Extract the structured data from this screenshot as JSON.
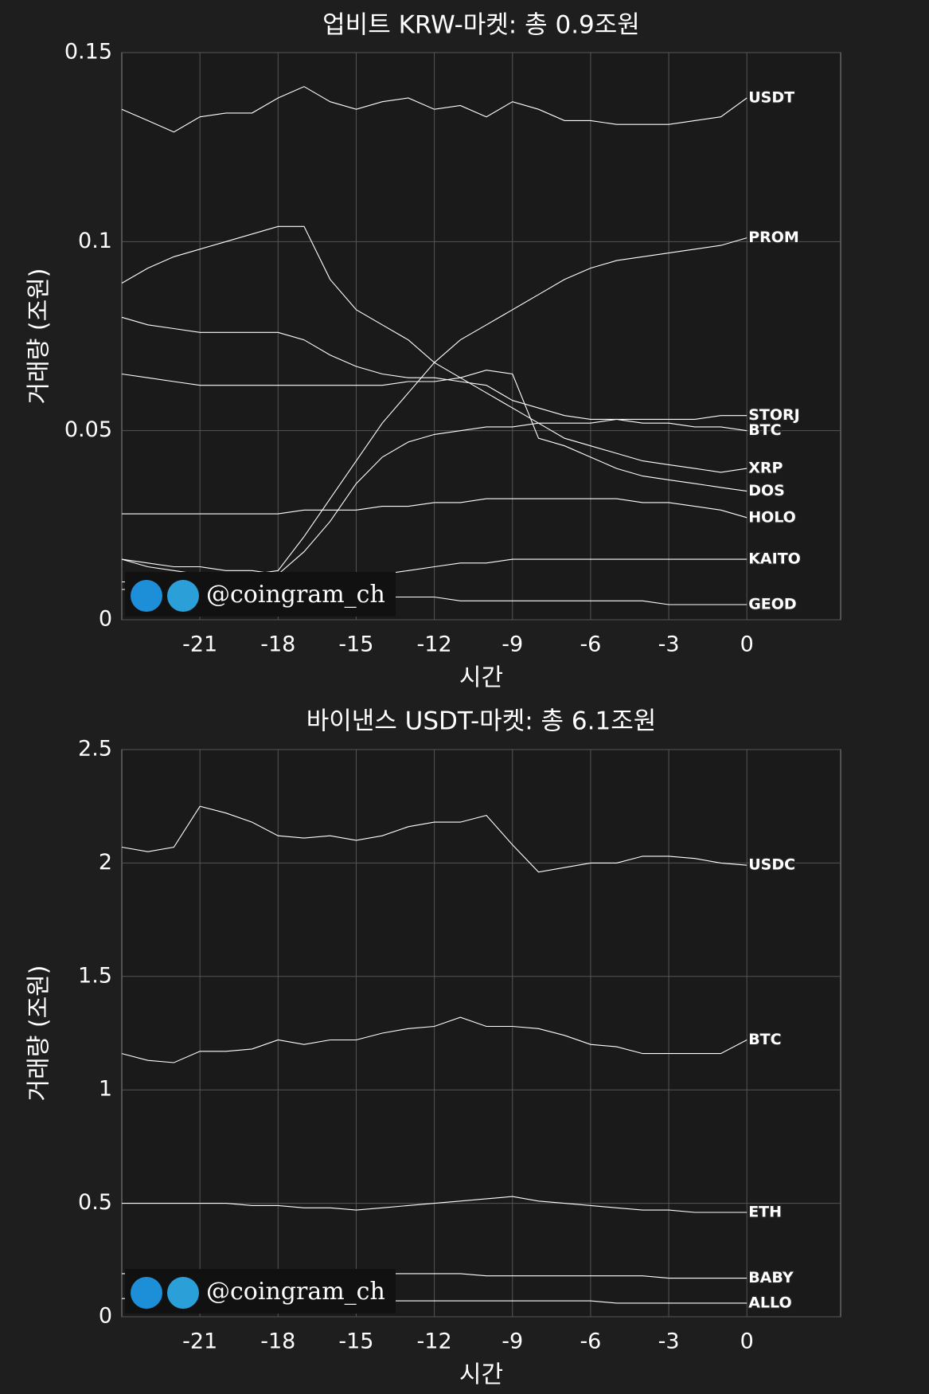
{
  "chart_data": [
    {
      "type": "line",
      "title": "업비트 KRW-마켓: 총 0.9조원",
      "xlabel": "시간",
      "ylabel": "거래량 (조원)",
      "watermark": "@coingram_ch",
      "grid": true,
      "line_color": "#ffffff",
      "x": [
        -24,
        -23,
        -22,
        -21,
        -20,
        -19,
        -18,
        -17,
        -16,
        -15,
        -14,
        -13,
        -12,
        -11,
        -10,
        -9,
        -8,
        -7,
        -6,
        -5,
        -4,
        -3,
        -2,
        -1,
        0
      ],
      "xlim": [
        -24,
        3.6
      ],
      "xticks": [
        -21,
        -18,
        -15,
        -12,
        -9,
        -6,
        -3,
        0
      ],
      "ylim": [
        0,
        0.15
      ],
      "yticks": [
        0,
        0.05,
        0.1,
        0.15
      ],
      "series": [
        {
          "name": "USDT",
          "values": [
            0.135,
            0.132,
            0.129,
            0.133,
            0.134,
            0.134,
            0.138,
            0.141,
            0.137,
            0.135,
            0.137,
            0.138,
            0.135,
            0.136,
            0.133,
            0.137,
            0.135,
            0.132,
            0.132,
            0.131,
            0.131,
            0.131,
            0.132,
            0.133,
            0.138
          ]
        },
        {
          "name": "PROM",
          "values": [
            0.016,
            0.014,
            0.013,
            0.012,
            0.011,
            0.012,
            0.013,
            0.022,
            0.032,
            0.042,
            0.052,
            0.06,
            0.068,
            0.074,
            0.078,
            0.082,
            0.086,
            0.09,
            0.093,
            0.095,
            0.096,
            0.097,
            0.098,
            0.099,
            0.101
          ]
        },
        {
          "name": "STORJ",
          "values": [
            0.01,
            0.01,
            0.011,
            0.011,
            0.011,
            0.011,
            0.012,
            0.018,
            0.026,
            0.036,
            0.043,
            0.047,
            0.049,
            0.05,
            0.051,
            0.051,
            0.052,
            0.052,
            0.052,
            0.053,
            0.053,
            0.053,
            0.053,
            0.054,
            0.054
          ]
        },
        {
          "name": "BTC",
          "values": [
            0.08,
            0.078,
            0.077,
            0.076,
            0.076,
            0.076,
            0.076,
            0.074,
            0.07,
            0.067,
            0.065,
            0.064,
            0.064,
            0.063,
            0.062,
            0.058,
            0.056,
            0.054,
            0.053,
            0.053,
            0.052,
            0.052,
            0.051,
            0.051,
            0.05
          ]
        },
        {
          "name": "XRP",
          "values": [
            0.089,
            0.093,
            0.096,
            0.098,
            0.1,
            0.102,
            0.104,
            0.104,
            0.09,
            0.082,
            0.078,
            0.074,
            0.068,
            0.064,
            0.06,
            0.056,
            0.052,
            0.048,
            0.046,
            0.044,
            0.042,
            0.041,
            0.04,
            0.039,
            0.04
          ]
        },
        {
          "name": "DOS",
          "values": [
            0.065,
            0.064,
            0.063,
            0.062,
            0.062,
            0.062,
            0.062,
            0.062,
            0.062,
            0.062,
            0.062,
            0.063,
            0.063,
            0.064,
            0.066,
            0.065,
            0.048,
            0.046,
            0.043,
            0.04,
            0.038,
            0.037,
            0.036,
            0.035,
            0.034
          ]
        },
        {
          "name": "HOLO",
          "values": [
            0.028,
            0.028,
            0.028,
            0.028,
            0.028,
            0.028,
            0.028,
            0.029,
            0.029,
            0.029,
            0.03,
            0.03,
            0.031,
            0.031,
            0.032,
            0.032,
            0.032,
            0.032,
            0.032,
            0.032,
            0.031,
            0.031,
            0.03,
            0.029,
            0.027
          ]
        },
        {
          "name": "KAITO",
          "values": [
            0.016,
            0.015,
            0.014,
            0.014,
            0.013,
            0.013,
            0.012,
            0.012,
            0.011,
            0.011,
            0.012,
            0.013,
            0.014,
            0.015,
            0.015,
            0.016,
            0.016,
            0.016,
            0.016,
            0.016,
            0.016,
            0.016,
            0.016,
            0.016,
            0.016
          ]
        },
        {
          "name": "GEOD",
          "values": [
            0.008,
            0.008,
            0.008,
            0.007,
            0.007,
            0.007,
            0.007,
            0.007,
            0.006,
            0.006,
            0.006,
            0.006,
            0.006,
            0.005,
            0.005,
            0.005,
            0.005,
            0.005,
            0.005,
            0.005,
            0.005,
            0.004,
            0.004,
            0.004,
            0.004
          ]
        }
      ]
    },
    {
      "type": "line",
      "title": "바이낸스 USDT-마켓: 총 6.1조원",
      "xlabel": "시간",
      "ylabel": "거래량 (조원)",
      "watermark": "@coingram_ch",
      "grid": true,
      "line_color": "#ffffff",
      "x": [
        -24,
        -23,
        -22,
        -21,
        -20,
        -19,
        -18,
        -17,
        -16,
        -15,
        -14,
        -13,
        -12,
        -11,
        -10,
        -9,
        -8,
        -7,
        -6,
        -5,
        -4,
        -3,
        -2,
        -1,
        0
      ],
      "xlim": [
        -24,
        3.6
      ],
      "xticks": [
        -21,
        -18,
        -15,
        -12,
        -9,
        -6,
        -3,
        0
      ],
      "ylim": [
        0,
        2.5
      ],
      "yticks": [
        0,
        0.5,
        1,
        1.5,
        2,
        2.5
      ],
      "series": [
        {
          "name": "USDC",
          "values": [
            2.07,
            2.05,
            2.07,
            2.25,
            2.22,
            2.18,
            2.12,
            2.11,
            2.12,
            2.1,
            2.12,
            2.16,
            2.18,
            2.18,
            2.21,
            2.08,
            1.96,
            1.98,
            2.0,
            2.0,
            2.03,
            2.03,
            2.02,
            2.0,
            1.99
          ]
        },
        {
          "name": "BTC",
          "values": [
            1.16,
            1.13,
            1.12,
            1.17,
            1.17,
            1.18,
            1.22,
            1.2,
            1.22,
            1.22,
            1.25,
            1.27,
            1.28,
            1.32,
            1.28,
            1.28,
            1.27,
            1.24,
            1.2,
            1.19,
            1.16,
            1.16,
            1.16,
            1.16,
            1.22
          ]
        },
        {
          "name": "ETH",
          "values": [
            0.5,
            0.5,
            0.5,
            0.5,
            0.5,
            0.49,
            0.49,
            0.48,
            0.48,
            0.47,
            0.48,
            0.49,
            0.5,
            0.51,
            0.52,
            0.53,
            0.51,
            0.5,
            0.49,
            0.48,
            0.47,
            0.47,
            0.46,
            0.46,
            0.46
          ]
        },
        {
          "name": "BABY",
          "values": [
            0.19,
            0.19,
            0.19,
            0.19,
            0.19,
            0.19,
            0.19,
            0.19,
            0.19,
            0.19,
            0.19,
            0.19,
            0.19,
            0.19,
            0.18,
            0.18,
            0.18,
            0.18,
            0.18,
            0.18,
            0.18,
            0.17,
            0.17,
            0.17,
            0.17
          ]
        },
        {
          "name": "ALLO",
          "values": [
            0.08,
            0.08,
            0.08,
            0.08,
            0.08,
            0.08,
            0.08,
            0.08,
            0.07,
            0.07,
            0.07,
            0.07,
            0.07,
            0.07,
            0.07,
            0.07,
            0.07,
            0.07,
            0.07,
            0.06,
            0.06,
            0.06,
            0.06,
            0.06,
            0.06
          ]
        }
      ]
    }
  ]
}
